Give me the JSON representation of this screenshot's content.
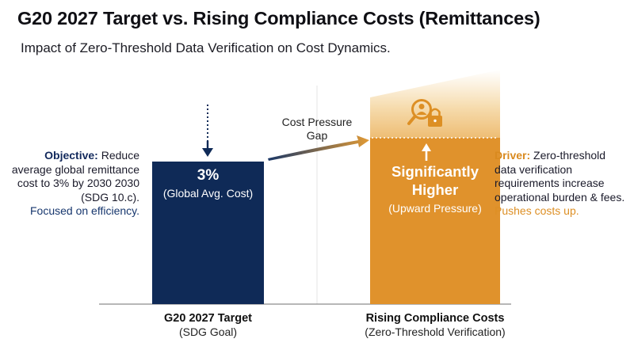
{
  "chart_data": {
    "type": "bar",
    "title": "G20 2027 Target vs. Rising Compliance Costs (Remittances)",
    "subtitle": "Impact of Zero-Threshold Data Verification on Cost Dynamics.",
    "categories": [
      {
        "name": "G20 2027 Target",
        "sub": "(SDG Goal)"
      },
      {
        "name": "Rising Compliance Costs",
        "sub": "(Zero-Threshold Verification)"
      }
    ],
    "bars": [
      {
        "value_label": "3%",
        "value_sub": "(Global Avg. Cost)",
        "color": "#0f2a57"
      },
      {
        "value_label": "Significantly Higher",
        "value_sub": "(Upward Pressure)",
        "color": "#e0922c"
      }
    ],
    "gap_label": "Cost Pressure Gap",
    "notes": {
      "left": {
        "key": "Objective:",
        "text": "Reduce average global remittance cost to 3% by 2030 2030 (SDG 10.c).",
        "accent": "Focused on efficiency."
      },
      "right": {
        "key": "Driver:",
        "text": "Zero-threshold data verification requirements increase operational burden & fees.",
        "accent": "Pushes costs up."
      }
    },
    "icons": [
      "arrow-down-icon",
      "arrow-up-icon",
      "search-person-lock-icon"
    ],
    "colors": {
      "navy": "#0f2a57",
      "orange": "#e0922c",
      "orange_fade": "#f3cf98",
      "text_navy": "#12295c",
      "text_orange": "#d98a1f"
    }
  }
}
